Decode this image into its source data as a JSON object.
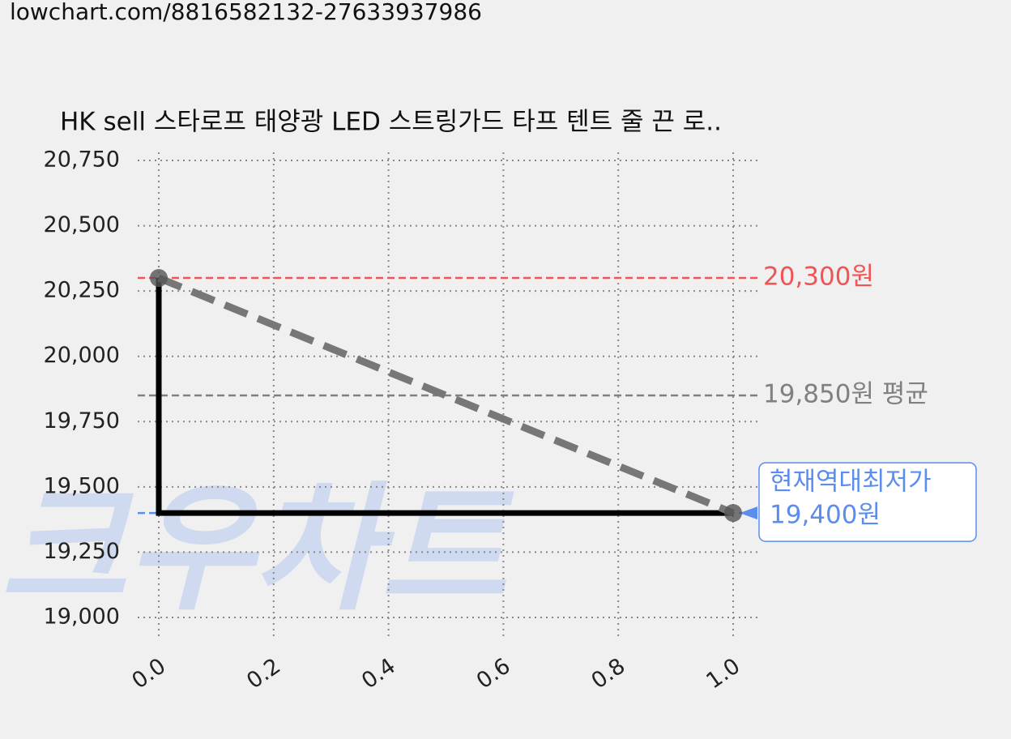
{
  "source": "lowchart.com/8816582132-27633937986",
  "chart_data": {
    "type": "line",
    "title": "HK sell 스타로프 태양광 LED 스트링가드 타프 텐트 줄 끈 로..",
    "watermark": "크우차트",
    "x": [
      0,
      1
    ],
    "values": [
      20300,
      19400
    ],
    "line_color": "#777777",
    "step_color": "#000000",
    "xlim": [
      0,
      1
    ],
    "ylim": [
      19000,
      20750
    ],
    "xticks": [
      {
        "value": 0,
        "label": "0.0"
      },
      {
        "value": 0.2,
        "label": "0.2"
      },
      {
        "value": 0.4,
        "label": "0.4"
      },
      {
        "value": 0.6,
        "label": "0.6"
      },
      {
        "value": 0.8,
        "label": "0.8"
      },
      {
        "value": 1,
        "label": "1.0"
      }
    ],
    "yticks": [
      {
        "value": 19000,
        "label": "19,000"
      },
      {
        "value": 19250,
        "label": "19,250"
      },
      {
        "value": 19500,
        "label": "19,500"
      },
      {
        "value": 19750,
        "label": "19,750"
      },
      {
        "value": 20000,
        "label": "20,000"
      },
      {
        "value": 20250,
        "label": "20,250"
      },
      {
        "value": 20500,
        "label": "20,500"
      },
      {
        "value": 20750,
        "label": "20,750"
      }
    ],
    "grid": true,
    "annotations": [
      {
        "value": 20300,
        "label": "20,300원",
        "color": "#f05454"
      },
      {
        "value": 19850,
        "label": "19,850원 평균",
        "color": "#808080"
      },
      {
        "value": 19400,
        "title": "현재역대최저가",
        "label": "19,400원",
        "color": "#5b8def"
      }
    ]
  }
}
